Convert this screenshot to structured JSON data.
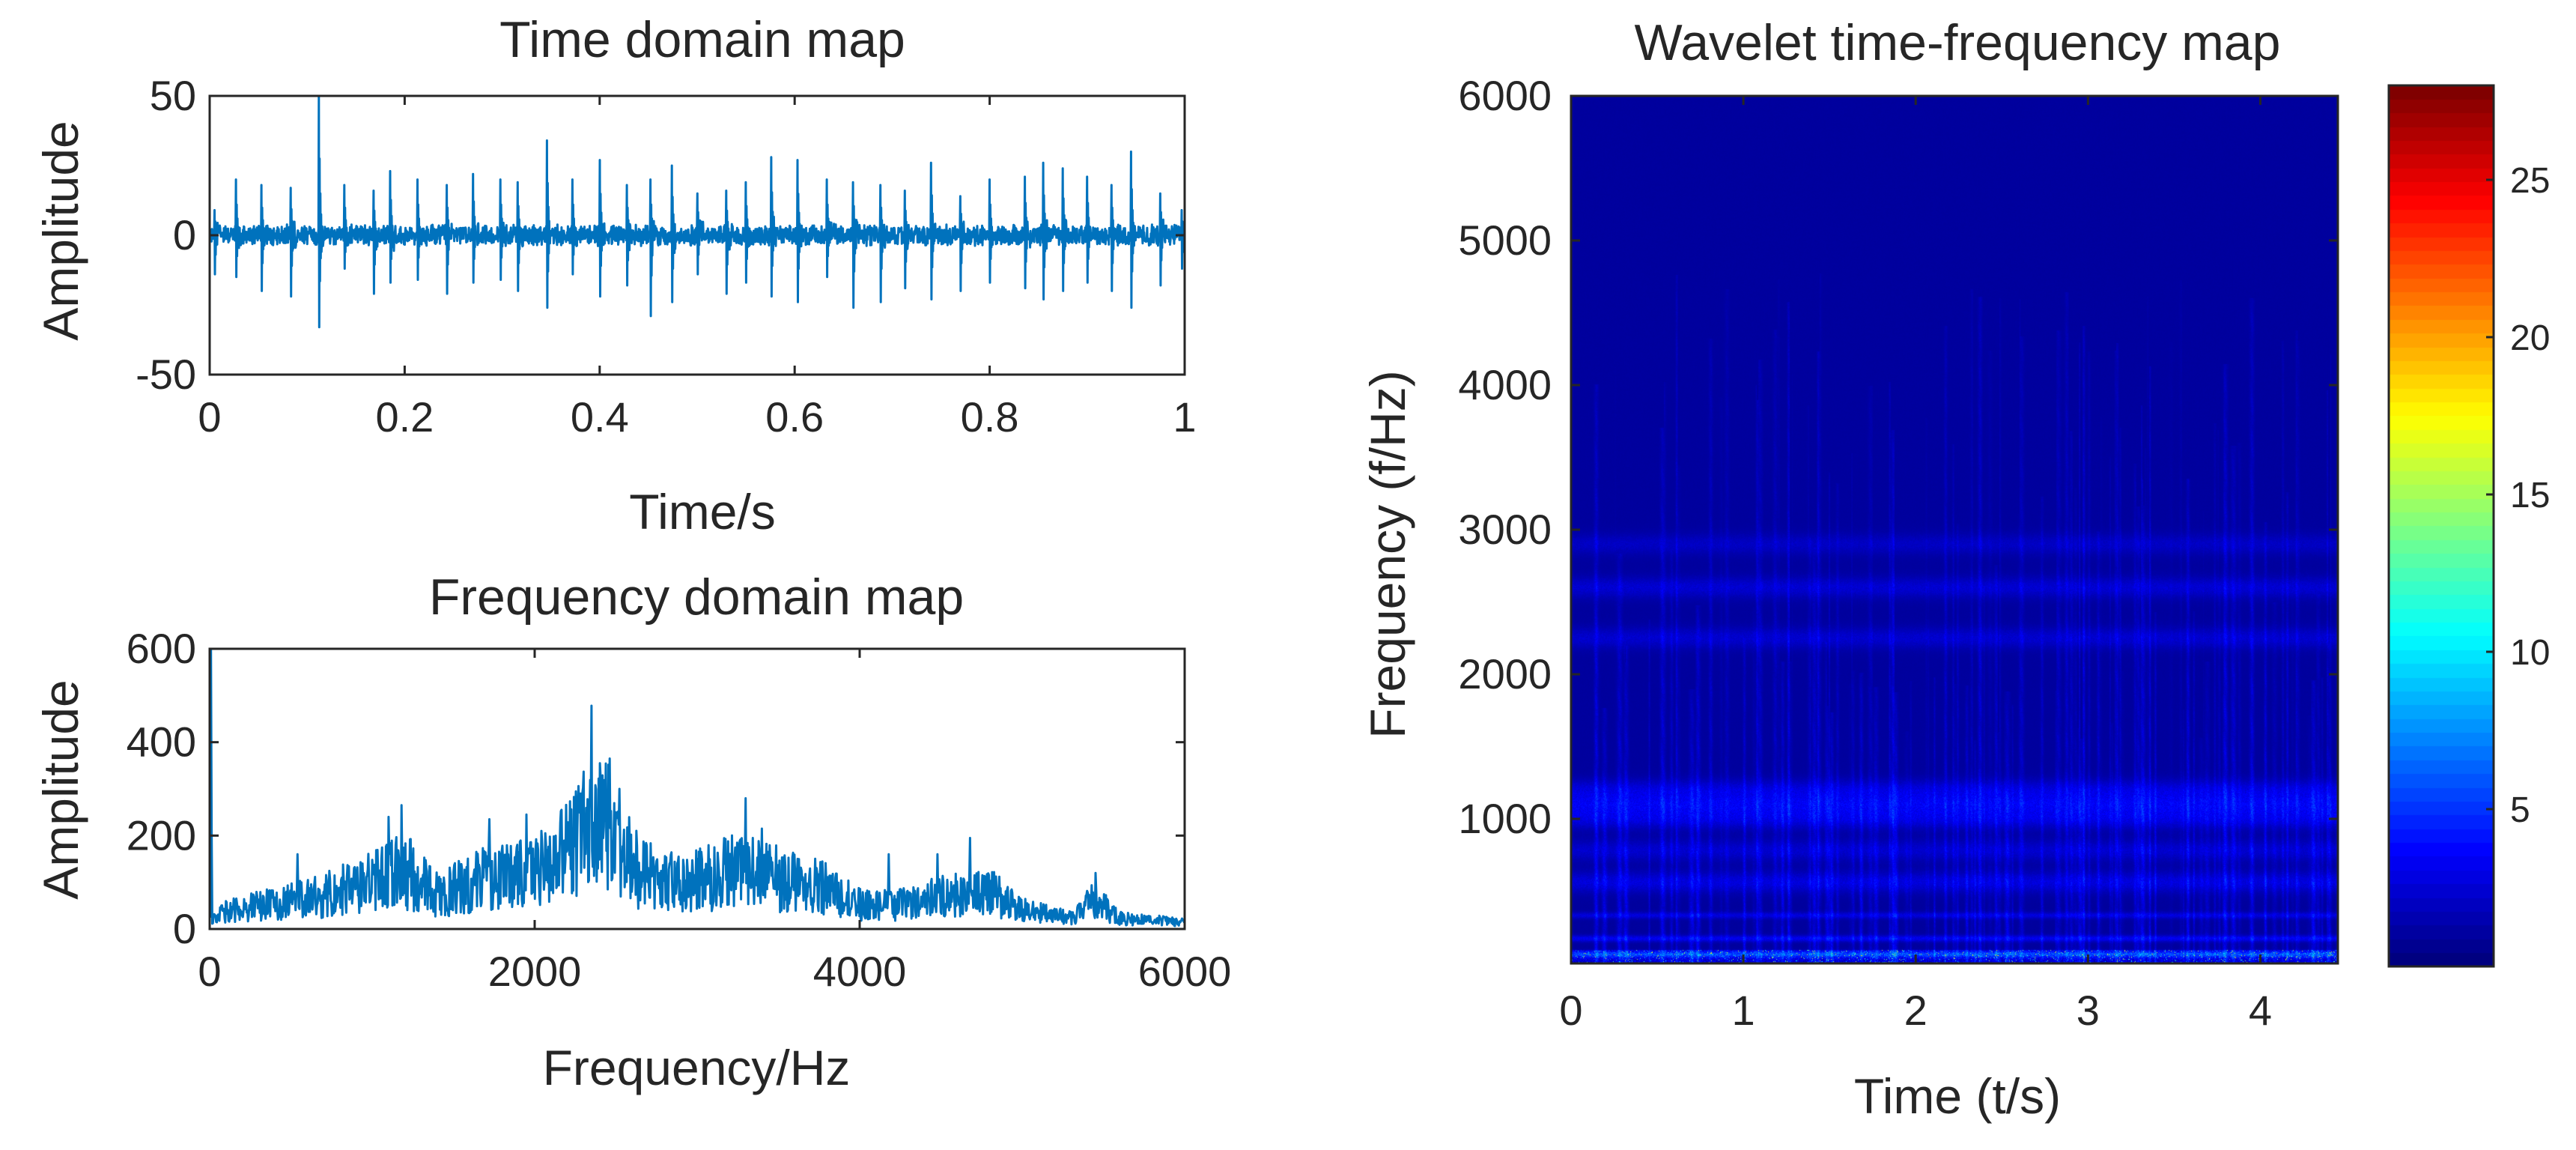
{
  "chart_data": [
    {
      "type": "line",
      "title": "Time domain map",
      "xlabel": "Time/s",
      "ylabel": "Amplitude",
      "xlim": [
        0,
        1
      ],
      "ylim": [
        -50,
        50
      ],
      "xticks": [
        0,
        0.2,
        0.4,
        0.6,
        0.8,
        1
      ],
      "xtick_labels": [
        "0",
        "0.2",
        "0.4",
        "0.6",
        "0.8",
        "1"
      ],
      "yticks": [
        -50,
        0,
        50
      ],
      "ytick_labels": [
        "-50",
        "0",
        "50"
      ],
      "color": "#0072BD",
      "noise_amplitude": 4,
      "impulses": [
        {
          "t": 0.005,
          "peak": 9,
          "trough": -14
        },
        {
          "t": 0.027,
          "peak": 20,
          "trough": -15
        },
        {
          "t": 0.053,
          "peak": 18,
          "trough": -20
        },
        {
          "t": 0.083,
          "peak": 17,
          "trough": -22
        },
        {
          "t": 0.112,
          "peak": 50,
          "trough": -33
        },
        {
          "t": 0.138,
          "peak": 18,
          "trough": -12
        },
        {
          "t": 0.168,
          "peak": 16,
          "trough": -21
        },
        {
          "t": 0.185,
          "peak": 23,
          "trough": -17
        },
        {
          "t": 0.213,
          "peak": 20,
          "trough": -16
        },
        {
          "t": 0.243,
          "peak": 18,
          "trough": -21
        },
        {
          "t": 0.27,
          "peak": 22,
          "trough": -17
        },
        {
          "t": 0.298,
          "peak": 20,
          "trough": -16
        },
        {
          "t": 0.316,
          "peak": 19,
          "trough": -20
        },
        {
          "t": 0.346,
          "peak": 34,
          "trough": -26
        },
        {
          "t": 0.372,
          "peak": 20,
          "trough": -14
        },
        {
          "t": 0.4,
          "peak": 27,
          "trough": -22
        },
        {
          "t": 0.428,
          "peak": 18,
          "trough": -18
        },
        {
          "t": 0.452,
          "peak": 20,
          "trough": -29
        },
        {
          "t": 0.474,
          "peak": 25,
          "trough": -24
        },
        {
          "t": 0.5,
          "peak": 15,
          "trough": -14
        },
        {
          "t": 0.53,
          "peak": 16,
          "trough": -21
        },
        {
          "t": 0.55,
          "peak": 19,
          "trough": -17
        },
        {
          "t": 0.576,
          "peak": 28,
          "trough": -22
        },
        {
          "t": 0.603,
          "peak": 27,
          "trough": -24
        },
        {
          "t": 0.633,
          "peak": 20,
          "trough": -15
        },
        {
          "t": 0.66,
          "peak": 19,
          "trough": -26
        },
        {
          "t": 0.688,
          "peak": 18,
          "trough": -24
        },
        {
          "t": 0.713,
          "peak": 16,
          "trough": -19
        },
        {
          "t": 0.74,
          "peak": 26,
          "trough": -23
        },
        {
          "t": 0.77,
          "peak": 14,
          "trough": -20
        },
        {
          "t": 0.8,
          "peak": 20,
          "trough": -17
        },
        {
          "t": 0.836,
          "peak": 21,
          "trough": -19
        },
        {
          "t": 0.855,
          "peak": 26,
          "trough": -23
        },
        {
          "t": 0.875,
          "peak": 24,
          "trough": -20
        },
        {
          "t": 0.9,
          "peak": 21,
          "trough": -17
        },
        {
          "t": 0.925,
          "peak": 18,
          "trough": -20
        },
        {
          "t": 0.945,
          "peak": 30,
          "trough": -26
        },
        {
          "t": 0.975,
          "peak": 15,
          "trough": -18
        },
        {
          "t": 0.997,
          "peak": 9,
          "trough": -12
        }
      ]
    },
    {
      "type": "line",
      "title": "Frequency domain map",
      "xlabel": "Frequency/Hz",
      "ylabel": "Amplitude",
      "xlim": [
        0,
        6000
      ],
      "ylim": [
        0,
        600
      ],
      "xticks": [
        0,
        2000,
        4000,
        6000
      ],
      "xtick_labels": [
        "0",
        "2000",
        "4000",
        "6000"
      ],
      "yticks": [
        0,
        200,
        400,
        600
      ],
      "ytick_labels": [
        "0",
        "200",
        "400",
        "600"
      ],
      "color": "#0072BD",
      "envelope": {
        "x": [
          0,
          30,
          120,
          400,
          700,
          1000,
          1200,
          1400,
          1700,
          2000,
          2200,
          2350,
          2450,
          2600,
          2800,
          3000,
          3200,
          3400,
          3600,
          3800,
          4000,
          4200,
          4400,
          4600,
          4800,
          5000,
          5300,
          5450,
          5600,
          6000
        ],
        "y": [
          30,
          30,
          45,
          60,
          80,
          110,
          140,
          80,
          120,
          130,
          180,
          260,
          240,
          150,
          110,
          115,
          140,
          130,
          110,
          95,
          60,
          55,
          70,
          85,
          90,
          45,
          25,
          70,
          25,
          15
        ]
      },
      "peaks": [
        {
          "f": 10,
          "a": 600
        },
        {
          "f": 540,
          "a": 160
        },
        {
          "f": 1100,
          "a": 240
        },
        {
          "f": 1180,
          "a": 265
        },
        {
          "f": 1720,
          "a": 235
        },
        {
          "f": 1950,
          "a": 245
        },
        {
          "f": 2040,
          "a": 210
        },
        {
          "f": 2280,
          "a": 290
        },
        {
          "f": 2350,
          "a": 478
        },
        {
          "f": 2400,
          "a": 355
        },
        {
          "f": 2460,
          "a": 365
        },
        {
          "f": 2520,
          "a": 300
        },
        {
          "f": 3300,
          "a": 280
        },
        {
          "f": 3400,
          "a": 215
        },
        {
          "f": 4180,
          "a": 160
        },
        {
          "f": 4480,
          "a": 160
        },
        {
          "f": 4680,
          "a": 195
        },
        {
          "f": 5450,
          "a": 120
        }
      ]
    },
    {
      "type": "heatmap",
      "title": "Wavelet time-frequency map",
      "xlabel": "Time (t/s)",
      "ylabel": "Frequency (f/Hz)",
      "xlim": [
        0,
        4.45
      ],
      "ylim": [
        0,
        6000
      ],
      "xticks": [
        0,
        1,
        2,
        3,
        4
      ],
      "xtick_labels": [
        "0",
        "1",
        "2",
        "3",
        "4"
      ],
      "yticks": [
        1000,
        2000,
        3000,
        4000,
        5000,
        6000
      ],
      "ytick_labels": [
        "1000",
        "2000",
        "3000",
        "4000",
        "5000",
        "6000"
      ],
      "colormap": "jet",
      "colorbar": {
        "range": [
          0,
          28
        ],
        "ticks": [
          5,
          10,
          15,
          20,
          25
        ],
        "tick_labels": [
          "5",
          "10",
          "15",
          "20",
          "25"
        ]
      },
      "background_level": 0.3,
      "bands": [
        {
          "f": 60,
          "level": 3.5
        },
        {
          "f": 170,
          "level": 2.4
        },
        {
          "f": 330,
          "level": 1.8
        },
        {
          "f": 560,
          "level": 1.8
        },
        {
          "f": 780,
          "level": 1.4
        },
        {
          "f": 1000,
          "level": 1.9
        },
        {
          "f": 1100,
          "level": 2.2
        },
        {
          "f": 1200,
          "level": 1.7
        },
        {
          "f": 2250,
          "level": 1.4
        },
        {
          "f": 2600,
          "level": 1.5
        },
        {
          "f": 2900,
          "level": 1.1
        }
      ],
      "streak_count": 150,
      "peak_level": 25
    }
  ]
}
